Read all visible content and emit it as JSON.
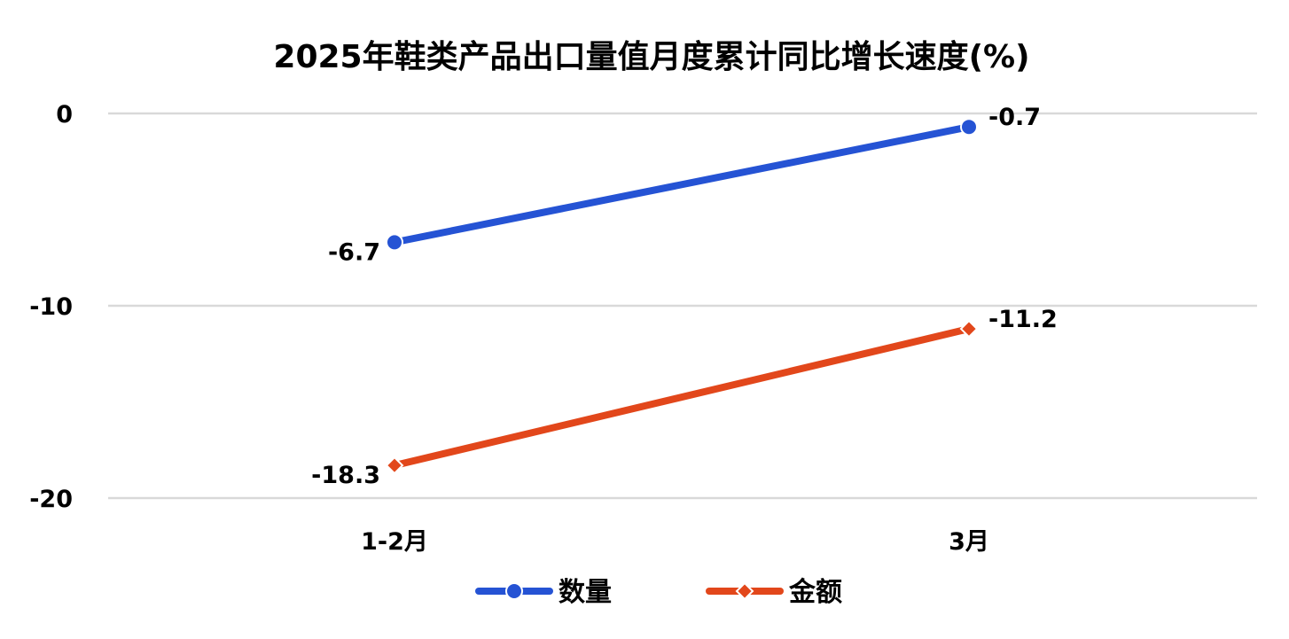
{
  "chart_data": {
    "type": "line",
    "title": "2025年鞋类产品出口量值月度累计同比增长速度(%)",
    "categories": [
      "1-2月",
      "3月"
    ],
    "series": [
      {
        "name": "数量",
        "values": [
          -6.7,
          -0.7
        ],
        "labels": [
          "-6.7",
          "-0.7"
        ],
        "color": "#2553D4",
        "marker": "circle"
      },
      {
        "name": "金额",
        "values": [
          -18.3,
          -11.2
        ],
        "labels": [
          "-18.3",
          "-11.2"
        ],
        "color": "#E2471B",
        "marker": "diamond"
      }
    ],
    "ylim": [
      -20,
      0
    ],
    "yticks": [
      0,
      -10,
      -20
    ],
    "ytick_labels": [
      "0",
      "-10",
      "-20"
    ],
    "grid": true,
    "legend": "bottom-center",
    "gridline_color": "#D9D9D9"
  }
}
